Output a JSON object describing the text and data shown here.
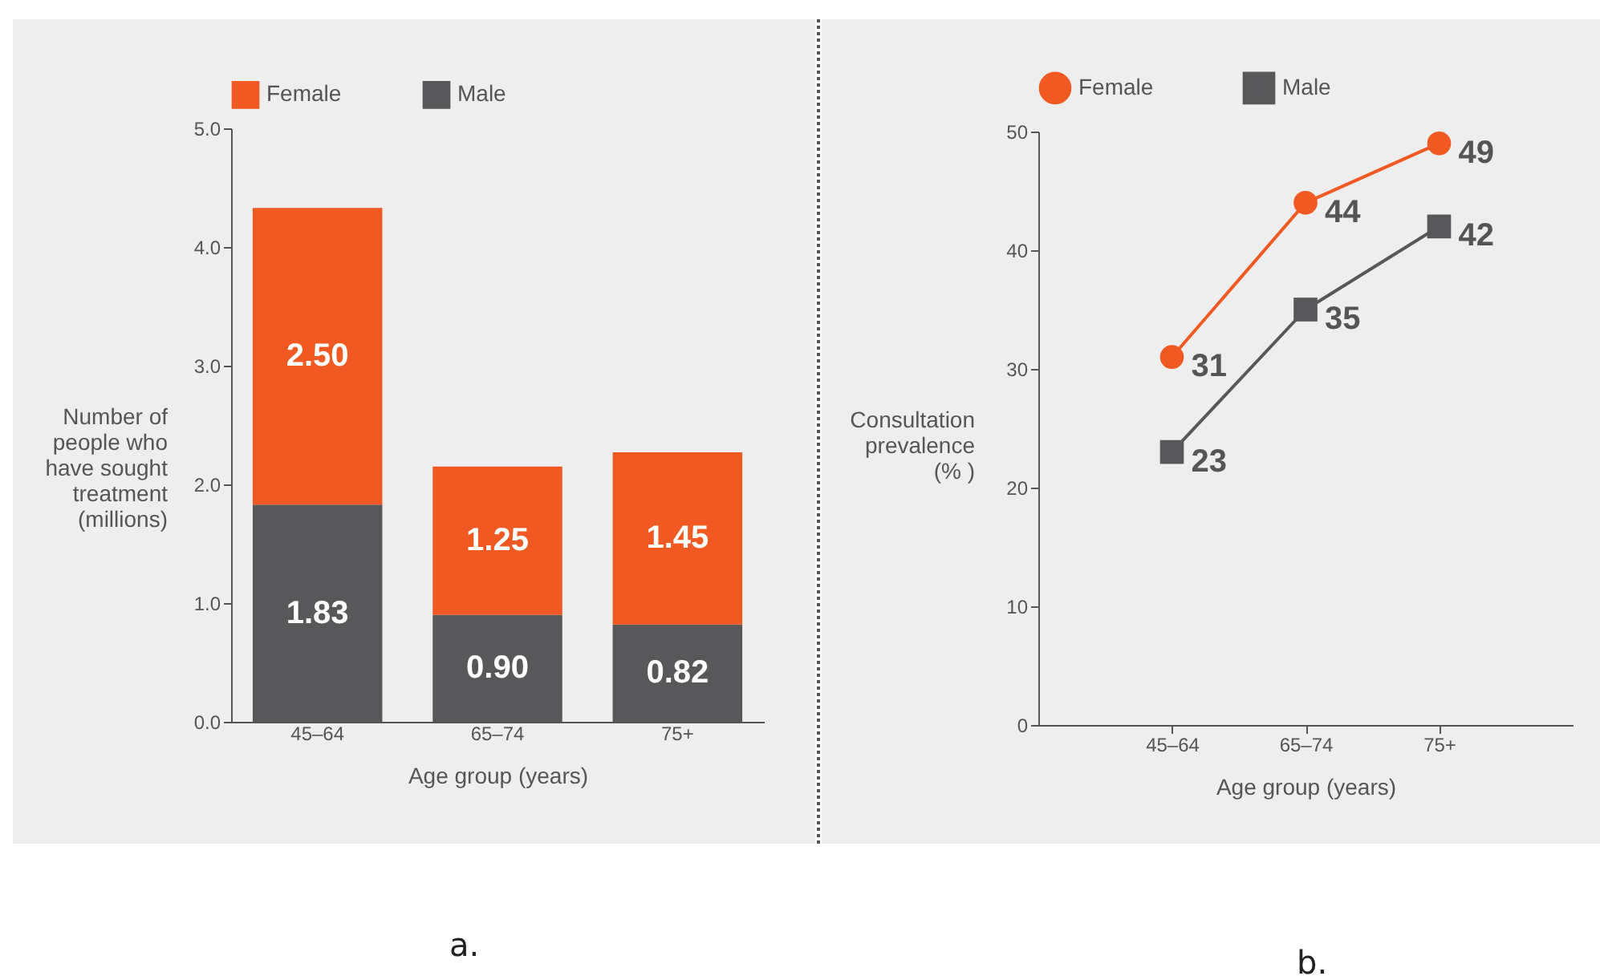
{
  "chart_data": [
    {
      "type": "bar",
      "stacked": true,
      "xlabel": "Age group (years)",
      "ylabel": "Number of people who have sought treatment (millions)",
      "categories": [
        "45–64",
        "65–74",
        "75+"
      ],
      "series": [
        {
          "name": "Male",
          "color": "#58585a",
          "values": [
            1.83,
            0.9,
            0.82
          ],
          "value_labels": [
            "1.83",
            "0.90",
            "0.82"
          ]
        },
        {
          "name": "Female",
          "color": "#f05a22",
          "values": [
            2.5,
            1.25,
            1.45
          ],
          "value_labels": [
            "2.50",
            "1.25",
            "1.45"
          ]
        }
      ],
      "ylim": [
        0,
        5
      ],
      "yticks": [
        {
          "value": 0,
          "label": "0.0"
        },
        {
          "value": 1,
          "label": "1.0"
        },
        {
          "value": 2,
          "label": "2.0"
        },
        {
          "value": 3,
          "label": "3.0"
        },
        {
          "value": 4,
          "label": "4.0"
        },
        {
          "value": 5,
          "label": "5.0"
        }
      ],
      "legend": "top",
      "grid": false,
      "annotations": [
        "a."
      ]
    },
    {
      "type": "line",
      "xlabel": "Age group (years)",
      "ylabel": "Consultation prevalence (% )",
      "categories": [
        "45–64",
        "65–74",
        "75+"
      ],
      "series": [
        {
          "name": "Female",
          "color": "#f05a22",
          "marker": "circle",
          "values": [
            31,
            44,
            49
          ]
        },
        {
          "name": "Male",
          "color": "#58585a",
          "marker": "square",
          "values": [
            23,
            35,
            42
          ]
        }
      ],
      "ylim": [
        0,
        50
      ],
      "yticks": [
        0,
        10,
        20,
        30,
        40,
        50
      ],
      "data_labels": true,
      "legend": "top",
      "grid": false,
      "annotations": [
        "b."
      ]
    }
  ]
}
